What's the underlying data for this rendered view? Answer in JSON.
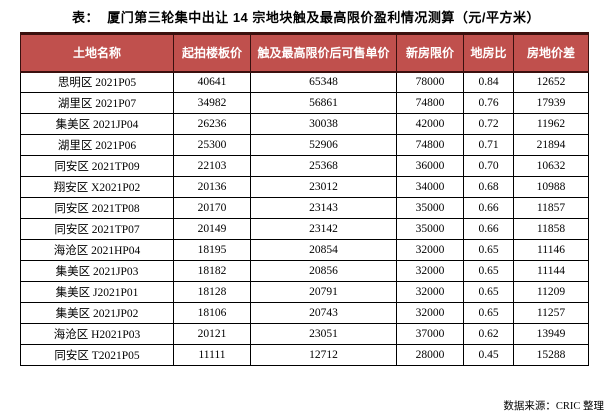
{
  "title": "表：  厦门第三轮集中出让 14 宗地块触及最高限价盈利情况测算（元/平方米）",
  "footer": {
    "source": "数据来源：CRIC 整理"
  },
  "colors": {
    "header_bg": "#C0504D",
    "header_text": "#FFFFFF",
    "header_border": "#3A100E",
    "body_border": "#000000",
    "page_bg": "#FFFFFF",
    "text_color": "#000000"
  },
  "chart_data": {
    "type": "table",
    "title": "表：  厦门第三轮集中出让 14 宗地块触及最高限价盈利情况测算（元/平方米）",
    "unit": "元/平方米",
    "source": "数据来源：CRIC 整理",
    "columns": [
      "土地名称",
      "起拍楼板价",
      "触及最高限价后可售单价",
      "新房限价",
      "地房比",
      "房地价差"
    ],
    "rows": [
      [
        "思明区 2021P05",
        "40641",
        "65348",
        "78000",
        "0.84",
        "12652"
      ],
      [
        "湖里区 2021P07",
        "34982",
        "56861",
        "74800",
        "0.76",
        "17939"
      ],
      [
        "集美区 2021JP04",
        "26236",
        "30038",
        "42000",
        "0.72",
        "11962"
      ],
      [
        "湖里区 2021P06",
        "25300",
        "52906",
        "74800",
        "0.71",
        "21894"
      ],
      [
        "同安区 2021TP09",
        "22103",
        "25368",
        "36000",
        "0.70",
        "10632"
      ],
      [
        "翔安区 X2021P02",
        "20136",
        "23012",
        "34000",
        "0.68",
        "10988"
      ],
      [
        "同安区 2021TP08",
        "20170",
        "23143",
        "35000",
        "0.66",
        "11857"
      ],
      [
        "同安区 2021TP07",
        "20149",
        "23142",
        "35000",
        "0.66",
        "11858"
      ],
      [
        "海沧区 2021HP04",
        "18195",
        "20854",
        "32000",
        "0.65",
        "11146"
      ],
      [
        "集美区 2021JP03",
        "18182",
        "20856",
        "32000",
        "0.65",
        "11144"
      ],
      [
        "集美区 J2021P01",
        "18128",
        "20791",
        "32000",
        "0.65",
        "11209"
      ],
      [
        "集美区 2021JP02",
        "18106",
        "20743",
        "32000",
        "0.65",
        "11257"
      ],
      [
        "海沧区 H2021P03",
        "20121",
        "23051",
        "37000",
        "0.62",
        "13949"
      ],
      [
        "同安区 T2021P05",
        "11111",
        "12712",
        "28000",
        "0.45",
        "15288"
      ]
    ]
  }
}
